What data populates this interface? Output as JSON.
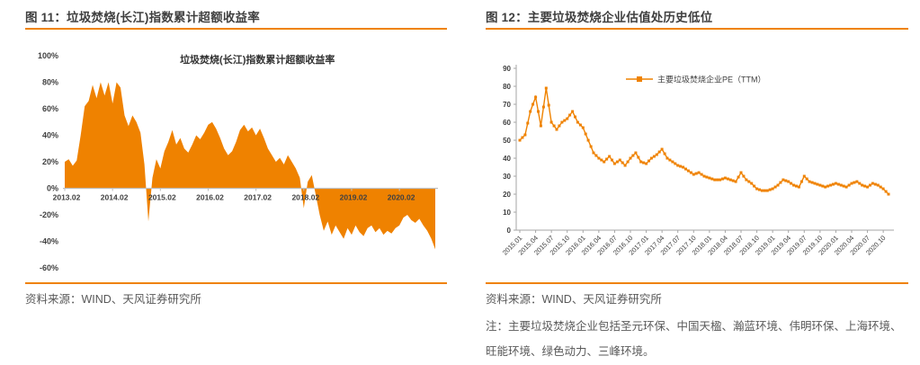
{
  "accent": "#EF8200",
  "figures": [
    {
      "title": "图 11：垃圾焚烧(长江)指数累计超额收益率",
      "source": "资料来源：WIND、天风证券研究所"
    },
    {
      "title": "图 12：主要垃圾焚烧企业估值处历史低位",
      "source": "资料来源：WIND、天风证券研究所",
      "note": "注：主要垃圾焚烧企业包括圣元环保、中国天楹、瀚蓝环境、伟明环保、上海环境、旺能环境、绿色动力、三峰环境。"
    }
  ],
  "chart_data": [
    {
      "type": "area",
      "title": "垃圾焚烧(长江)指数累计超额收益率",
      "color": "#EF8200",
      "axis_color": "#BFBFBF",
      "label_color": "#404040",
      "ylim": [
        -60,
        100
      ],
      "y_ticks": [
        100,
        80,
        60,
        40,
        20,
        0,
        -20,
        -40,
        -60
      ],
      "y_tick_suffix": "%",
      "x_start": "2013.02",
      "x_end": "2020.11",
      "x_tick_every": 12,
      "x_tick_labels": [
        "2013.02",
        "2014.02",
        "2015.02",
        "2016.02",
        "2017.02",
        "2018.02",
        "2019.02",
        "2020.02"
      ],
      "grid": false,
      "legend_position": "none",
      "unit": "percent",
      "values": [
        20,
        22,
        17,
        21,
        40,
        62,
        66,
        78,
        68,
        80,
        70,
        80,
        64,
        80,
        76,
        55,
        47,
        55,
        50,
        42,
        18,
        -25,
        8,
        22,
        15,
        28,
        35,
        44,
        33,
        38,
        30,
        27,
        33,
        40,
        37,
        42,
        48,
        50,
        45,
        38,
        30,
        25,
        28,
        35,
        44,
        48,
        43,
        46,
        40,
        45,
        38,
        30,
        25,
        20,
        23,
        18,
        25,
        20,
        15,
        8,
        -15,
        5,
        10,
        -5,
        -20,
        -32,
        -25,
        -35,
        -28,
        -33,
        -38,
        -30,
        -35,
        -28,
        -33,
        -36,
        -30,
        -28,
        -33,
        -30,
        -35,
        -32,
        -34,
        -30,
        -28,
        -22,
        -20,
        -24,
        -26,
        -23,
        -28,
        -32,
        -38,
        -46
      ]
    },
    {
      "type": "line",
      "legend": "主要垃圾焚烧企业PE（TTM）",
      "marker": "square",
      "color": "#EF8200",
      "axis_color": "#A6A6A6",
      "label_color": "#404040",
      "ylim": [
        0,
        90
      ],
      "y_ticks": [
        90,
        80,
        70,
        60,
        50,
        40,
        30,
        20,
        10,
        0
      ],
      "x_start": "2015.01",
      "x_end": "2020.11",
      "x_tick_every": 3,
      "x_tick_labels": [
        "2015.01",
        "2015.04",
        "2015.07",
        "2015.10",
        "2016.01",
        "2016.04",
        "2016.07",
        "2016.10",
        "2017.01",
        "2017.04",
        "2017.07",
        "2017.10",
        "2018.01",
        "2018.04",
        "2018.07",
        "2018.10",
        "2019.01",
        "2019.04",
        "2019.07",
        "2019.10",
        "2020.01",
        "2020.04",
        "2020.07",
        "2020.10"
      ],
      "grid": false,
      "legend_position": "top",
      "values": [
        50,
        53,
        66,
        74,
        58,
        79,
        60,
        56,
        60,
        62,
        66,
        60,
        57,
        50,
        43,
        40,
        38,
        41,
        37,
        39,
        36,
        40,
        43,
        38,
        37,
        40,
        42,
        45,
        40,
        38,
        36,
        35,
        33,
        31,
        32,
        30,
        29,
        28,
        28,
        29,
        28,
        27,
        32,
        28,
        26,
        23,
        22,
        22,
        23,
        25,
        28,
        27,
        25,
        24,
        30,
        27,
        26,
        25,
        24,
        25,
        26,
        25,
        24,
        26,
        27,
        25,
        24,
        26,
        25,
        23,
        20
      ]
    }
  ]
}
